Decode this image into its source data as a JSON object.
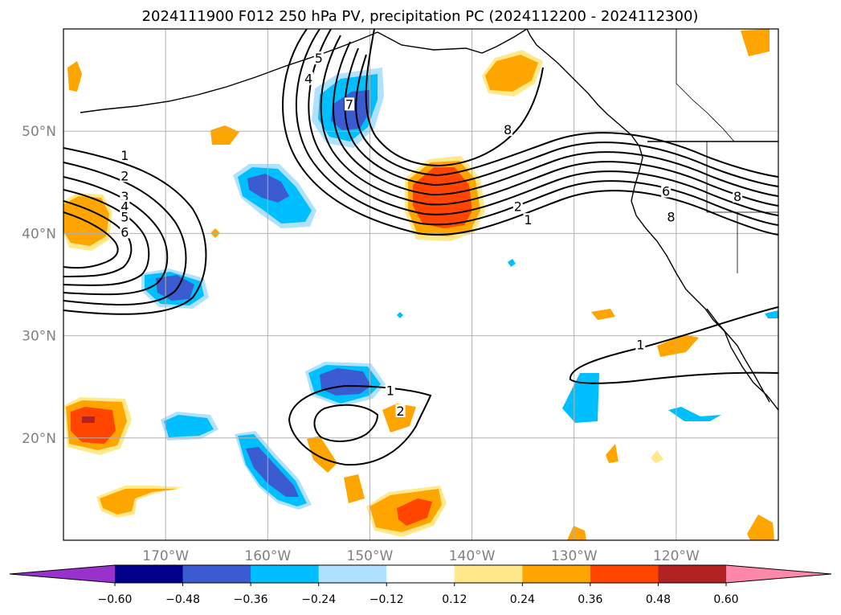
{
  "title": "2024111900 F012 250 hPa PV, precipitation PC (2024112200 - 2024112300)",
  "colors": {
    "ocean": "#ffffff",
    "grid": "#b0b0b0",
    "contour": "#000000",
    "tick_text": "#808080",
    "colorbar_fills": [
      "#9932cc",
      "#00008b",
      "#3b5bd0",
      "#00bfff",
      "#b0e2ff",
      "#ffffff",
      "#ffe98a",
      "#ffa500",
      "#ff4500",
      "#b22222",
      "#ff88aa"
    ]
  },
  "chart_data": {
    "type": "heatmap",
    "title": "2024111900 F012 250 hPa PV, precipitation PC (2024112200 - 2024112300)",
    "projection": "lat-lon",
    "xlim": [
      -180,
      -110
    ],
    "ylim": [
      10,
      60
    ],
    "grid": true,
    "x_ticks": [
      {
        "value": -170,
        "label": "170°W"
      },
      {
        "value": -160,
        "label": "160°W"
      },
      {
        "value": -150,
        "label": "150°W"
      },
      {
        "value": -140,
        "label": "140°W"
      },
      {
        "value": -130,
        "label": "130°W"
      },
      {
        "value": -120,
        "label": "120°W"
      }
    ],
    "y_ticks": [
      {
        "value": 20,
        "label": "20°N"
      },
      {
        "value": 30,
        "label": "30°N"
      },
      {
        "value": 40,
        "label": "40°N"
      },
      {
        "value": 50,
        "label": "50°N"
      }
    ],
    "colorbar": {
      "orientation": "horizontal",
      "extend": "both",
      "levels": [
        -0.6,
        -0.48,
        -0.36,
        -0.24,
        -0.12,
        0.12,
        0.24,
        0.36,
        0.48,
        0.6
      ],
      "tick_labels": [
        "−0.60",
        "−0.48",
        "−0.36",
        "−0.24",
        "−0.12",
        "0.12",
        "0.24",
        "0.36",
        "0.48",
        "0.60"
      ]
    },
    "pv_contours": {
      "levels": [
        1,
        2,
        3,
        4,
        5,
        6,
        7,
        8
      ],
      "labels": [
        {
          "text": "1",
          "lon": -174,
          "lat": 47.5
        },
        {
          "text": "2",
          "lon": -174,
          "lat": 45.5
        },
        {
          "text": "3",
          "lon": -174,
          "lat": 43.5
        },
        {
          "text": "4",
          "lon": -174,
          "lat": 42.5
        },
        {
          "text": "5",
          "lon": -174,
          "lat": 41.5
        },
        {
          "text": "6",
          "lon": -174,
          "lat": 40
        },
        {
          "text": "4",
          "lon": -156,
          "lat": 55
        },
        {
          "text": "5",
          "lon": -155,
          "lat": 57
        },
        {
          "text": "7",
          "lon": -152,
          "lat": 52.5
        },
        {
          "text": "8",
          "lon": -136.5,
          "lat": 50
        },
        {
          "text": "2",
          "lon": -135.5,
          "lat": 42.5
        },
        {
          "text": "1",
          "lon": -134.5,
          "lat": 41.2
        },
        {
          "text": "6",
          "lon": -121,
          "lat": 44
        },
        {
          "text": "8",
          "lon": -114,
          "lat": 43.5
        },
        {
          "text": "8",
          "lon": -120.5,
          "lat": 41.5
        },
        {
          "text": "1",
          "lon": -123.5,
          "lat": 29
        },
        {
          "text": "1",
          "lon": -148,
          "lat": 24.5
        },
        {
          "text": "2",
          "lon": -147,
          "lat": 22.5
        }
      ]
    },
    "precip_regions": [
      {
        "level": -0.36,
        "lon": -153,
        "lat": 53
      },
      {
        "level": -0.36,
        "lon": -159,
        "lat": 45
      },
      {
        "level": -0.36,
        "lon": -170,
        "lat": 35
      },
      {
        "level": -0.36,
        "lon": -154,
        "lat": 25
      },
      {
        "level": -0.36,
        "lon": -158,
        "lat": 16
      },
      {
        "level": 0.36,
        "lon": -143.5,
        "lat": 43
      },
      {
        "level": 0.36,
        "lon": -177,
        "lat": 21.5
      },
      {
        "level": 0.24,
        "lon": -177,
        "lat": 41
      },
      {
        "level": 0.24,
        "lon": -133.5,
        "lat": 57
      },
      {
        "level": 0.24,
        "lon": -146.5,
        "lat": 12.5
      },
      {
        "level": -0.24,
        "lon": -169.5,
        "lat": 21
      },
      {
        "level": -0.24,
        "lon": -130,
        "lat": 25
      }
    ]
  }
}
